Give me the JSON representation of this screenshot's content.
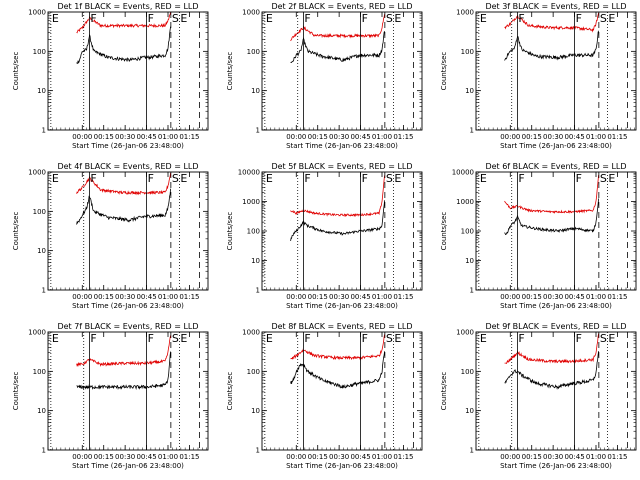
{
  "panel_title_suffix": " BLACK = Events, RED = LLD",
  "xlabel": "Start Time (26-Jan-06 23:48:00)",
  "ylabel": "Counts/sec",
  "colors": {
    "events": "#000000",
    "lld": "#e00000",
    "axes": "#000000"
  },
  "panels": [
    {
      "title": "Det 1f BLACK = Events, RED = LLD",
      "ymax": 1000
    },
    {
      "title": "Det 2f BLACK = Events, RED = LLD",
      "ymax": 1000
    },
    {
      "title": "Det 3f BLACK = Events, RED = LLD",
      "ymax": 1000
    },
    {
      "title": "Det 4f BLACK = Events, RED = LLD",
      "ymax": 1000
    },
    {
      "title": "Det 5f BLACK = Events, RED = LLD",
      "ymax": 10000
    },
    {
      "title": "Det 6f BLACK = Events, RED = LLD",
      "ymax": 10000
    },
    {
      "title": "Det 7f BLACK = Events, RED = LLD",
      "ymax": 1000
    },
    {
      "title": "Det 8f BLACK = Events, RED = LLD",
      "ymax": 1000
    },
    {
      "title": "Det 9f BLACK = Events, RED = LLD",
      "ymax": 1000
    }
  ],
  "chart_data": {
    "type": "line",
    "y_scale": "log",
    "x_unit": "minutes after 23:48:00",
    "xlim": [
      -12,
      100
    ],
    "x_ticks": [
      {
        "value": 12,
        "label": "00:00"
      },
      {
        "value": 27,
        "label": "00:15"
      },
      {
        "value": 42,
        "label": "00:30"
      },
      {
        "value": 57,
        "label": "00:45"
      },
      {
        "value": 72,
        "label": "01:00"
      },
      {
        "value": 87,
        "label": "01:15"
      }
    ],
    "markers": [
      {
        "x": -10,
        "label": "E",
        "style": "dotted"
      },
      {
        "x": 13,
        "label": "",
        "style": "dotted"
      },
      {
        "x": 17,
        "label": "F",
        "style": "solid"
      },
      {
        "x": 57,
        "label": "F",
        "style": "solid"
      },
      {
        "x": 74,
        "label": "S",
        "style": "dashed"
      },
      {
        "x": 80,
        "label": "E",
        "style": "dotted"
      },
      {
        "x": 94,
        "label": "",
        "style": "dashed"
      }
    ],
    "panels": [
      {
        "name": "Det 1f",
        "ylim": [
          1,
          1000
        ],
        "events": [
          [
            8,
            50
          ],
          [
            10,
            60
          ],
          [
            12,
            100
          ],
          [
            15,
            110
          ],
          [
            17,
            250
          ],
          [
            20,
            100
          ],
          [
            30,
            70
          ],
          [
            45,
            60
          ],
          [
            56,
            70
          ],
          [
            58,
            70
          ],
          [
            70,
            80
          ],
          [
            72,
            120
          ],
          [
            74,
            500
          ]
        ],
        "lld": [
          [
            8,
            300
          ],
          [
            12,
            400
          ],
          [
            17,
            700
          ],
          [
            25,
            450
          ],
          [
            40,
            450
          ],
          [
            56,
            450
          ],
          [
            70,
            450
          ],
          [
            72,
            600
          ],
          [
            74,
            1000
          ]
        ]
      },
      {
        "name": "Det 2f",
        "ylim": [
          1,
          1000
        ],
        "events": [
          [
            8,
            50
          ],
          [
            10,
            60
          ],
          [
            12,
            80
          ],
          [
            15,
            100
          ],
          [
            17,
            200
          ],
          [
            20,
            100
          ],
          [
            30,
            75
          ],
          [
            45,
            60
          ],
          [
            56,
            80
          ],
          [
            58,
            80
          ],
          [
            70,
            80
          ],
          [
            72,
            110
          ],
          [
            74,
            400
          ]
        ],
        "lld": [
          [
            8,
            200
          ],
          [
            12,
            280
          ],
          [
            17,
            400
          ],
          [
            25,
            250
          ],
          [
            40,
            250
          ],
          [
            56,
            250
          ],
          [
            70,
            250
          ],
          [
            72,
            400
          ],
          [
            74,
            1000
          ]
        ]
      },
      {
        "name": "Det 3f",
        "ylim": [
          1,
          1000
        ],
        "events": [
          [
            8,
            60
          ],
          [
            10,
            80
          ],
          [
            12,
            100
          ],
          [
            15,
            120
          ],
          [
            17,
            250
          ],
          [
            20,
            110
          ],
          [
            30,
            75
          ],
          [
            45,
            70
          ],
          [
            56,
            80
          ],
          [
            58,
            80
          ],
          [
            70,
            80
          ],
          [
            72,
            110
          ],
          [
            74,
            400
          ]
        ],
        "lld": [
          [
            8,
            400
          ],
          [
            12,
            500
          ],
          [
            17,
            800
          ],
          [
            25,
            450
          ],
          [
            40,
            400
          ],
          [
            56,
            400
          ],
          [
            70,
            350
          ],
          [
            72,
            500
          ],
          [
            74,
            1000
          ]
        ]
      },
      {
        "name": "Det 4f",
        "ylim": [
          1,
          1000
        ],
        "events": [
          [
            8,
            50
          ],
          [
            10,
            60
          ],
          [
            12,
            80
          ],
          [
            15,
            120
          ],
          [
            17,
            250
          ],
          [
            20,
            100
          ],
          [
            30,
            70
          ],
          [
            45,
            60
          ],
          [
            56,
            75
          ],
          [
            58,
            75
          ],
          [
            70,
            80
          ],
          [
            72,
            120
          ],
          [
            74,
            400
          ]
        ],
        "lld": [
          [
            8,
            300
          ],
          [
            12,
            400
          ],
          [
            17,
            700
          ],
          [
            25,
            350
          ],
          [
            40,
            300
          ],
          [
            56,
            300
          ],
          [
            70,
            300
          ],
          [
            72,
            450
          ],
          [
            74,
            1000
          ]
        ]
      },
      {
        "name": "Det 5f",
        "ylim": [
          1,
          10000
        ],
        "events": [
          [
            8,
            50
          ],
          [
            10,
            80
          ],
          [
            12,
            100
          ],
          [
            15,
            150
          ],
          [
            17,
            200
          ],
          [
            20,
            150
          ],
          [
            30,
            100
          ],
          [
            45,
            80
          ],
          [
            56,
            100
          ],
          [
            58,
            100
          ],
          [
            70,
            120
          ],
          [
            72,
            150
          ],
          [
            74,
            1500
          ]
        ],
        "lld": [
          [
            8,
            500
          ],
          [
            12,
            400
          ],
          [
            17,
            500
          ],
          [
            25,
            400
          ],
          [
            40,
            350
          ],
          [
            56,
            350
          ],
          [
            70,
            400
          ],
          [
            72,
            1000
          ],
          [
            74,
            10000
          ]
        ]
      },
      {
        "name": "Det 6f",
        "ylim": [
          1,
          10000
        ],
        "events": [
          [
            8,
            80
          ],
          [
            10,
            90
          ],
          [
            12,
            150
          ],
          [
            15,
            200
          ],
          [
            17,
            300
          ],
          [
            20,
            150
          ],
          [
            30,
            120
          ],
          [
            45,
            100
          ],
          [
            56,
            120
          ],
          [
            58,
            120
          ],
          [
            70,
            100
          ],
          [
            72,
            200
          ],
          [
            74,
            1500
          ]
        ],
        "lld": [
          [
            8,
            1000
          ],
          [
            12,
            600
          ],
          [
            17,
            700
          ],
          [
            25,
            500
          ],
          [
            40,
            450
          ],
          [
            56,
            450
          ],
          [
            70,
            500
          ],
          [
            72,
            1000
          ],
          [
            74,
            10000
          ]
        ]
      },
      {
        "name": "Det 7f",
        "ylim": [
          1,
          1000
        ],
        "events": [
          [
            8,
            40
          ],
          [
            10,
            40
          ],
          [
            12,
            40
          ],
          [
            15,
            40
          ],
          [
            17,
            40
          ],
          [
            20,
            40
          ],
          [
            30,
            40
          ],
          [
            45,
            40
          ],
          [
            56,
            40
          ],
          [
            58,
            40
          ],
          [
            70,
            45
          ],
          [
            72,
            60
          ],
          [
            74,
            400
          ]
        ],
        "lld": [
          [
            8,
            150
          ],
          [
            12,
            150
          ],
          [
            17,
            200
          ],
          [
            25,
            150
          ],
          [
            40,
            160
          ],
          [
            56,
            160
          ],
          [
            70,
            180
          ],
          [
            72,
            300
          ],
          [
            74,
            1000
          ]
        ]
      },
      {
        "name": "Det 8f",
        "ylim": [
          1,
          1000
        ],
        "events": [
          [
            8,
            50
          ],
          [
            10,
            60
          ],
          [
            12,
            100
          ],
          [
            15,
            150
          ],
          [
            17,
            150
          ],
          [
            20,
            100
          ],
          [
            30,
            60
          ],
          [
            45,
            40
          ],
          [
            56,
            50
          ],
          [
            58,
            50
          ],
          [
            70,
            60
          ],
          [
            72,
            100
          ],
          [
            74,
            400
          ]
        ],
        "lld": [
          [
            8,
            200
          ],
          [
            12,
            250
          ],
          [
            17,
            350
          ],
          [
            25,
            250
          ],
          [
            40,
            220
          ],
          [
            56,
            220
          ],
          [
            70,
            250
          ],
          [
            72,
            350
          ],
          [
            74,
            1000
          ]
        ]
      },
      {
        "name": "Det 9f",
        "ylim": [
          1,
          1000
        ],
        "events": [
          [
            8,
            50
          ],
          [
            10,
            60
          ],
          [
            12,
            80
          ],
          [
            15,
            100
          ],
          [
            17,
            100
          ],
          [
            20,
            80
          ],
          [
            30,
            50
          ],
          [
            45,
            40
          ],
          [
            56,
            50
          ],
          [
            58,
            50
          ],
          [
            70,
            60
          ],
          [
            72,
            90
          ],
          [
            74,
            400
          ]
        ],
        "lld": [
          [
            8,
            150
          ],
          [
            12,
            200
          ],
          [
            17,
            300
          ],
          [
            25,
            200
          ],
          [
            40,
            180
          ],
          [
            56,
            180
          ],
          [
            70,
            200
          ],
          [
            72,
            300
          ],
          [
            74,
            1000
          ]
        ]
      }
    ]
  }
}
